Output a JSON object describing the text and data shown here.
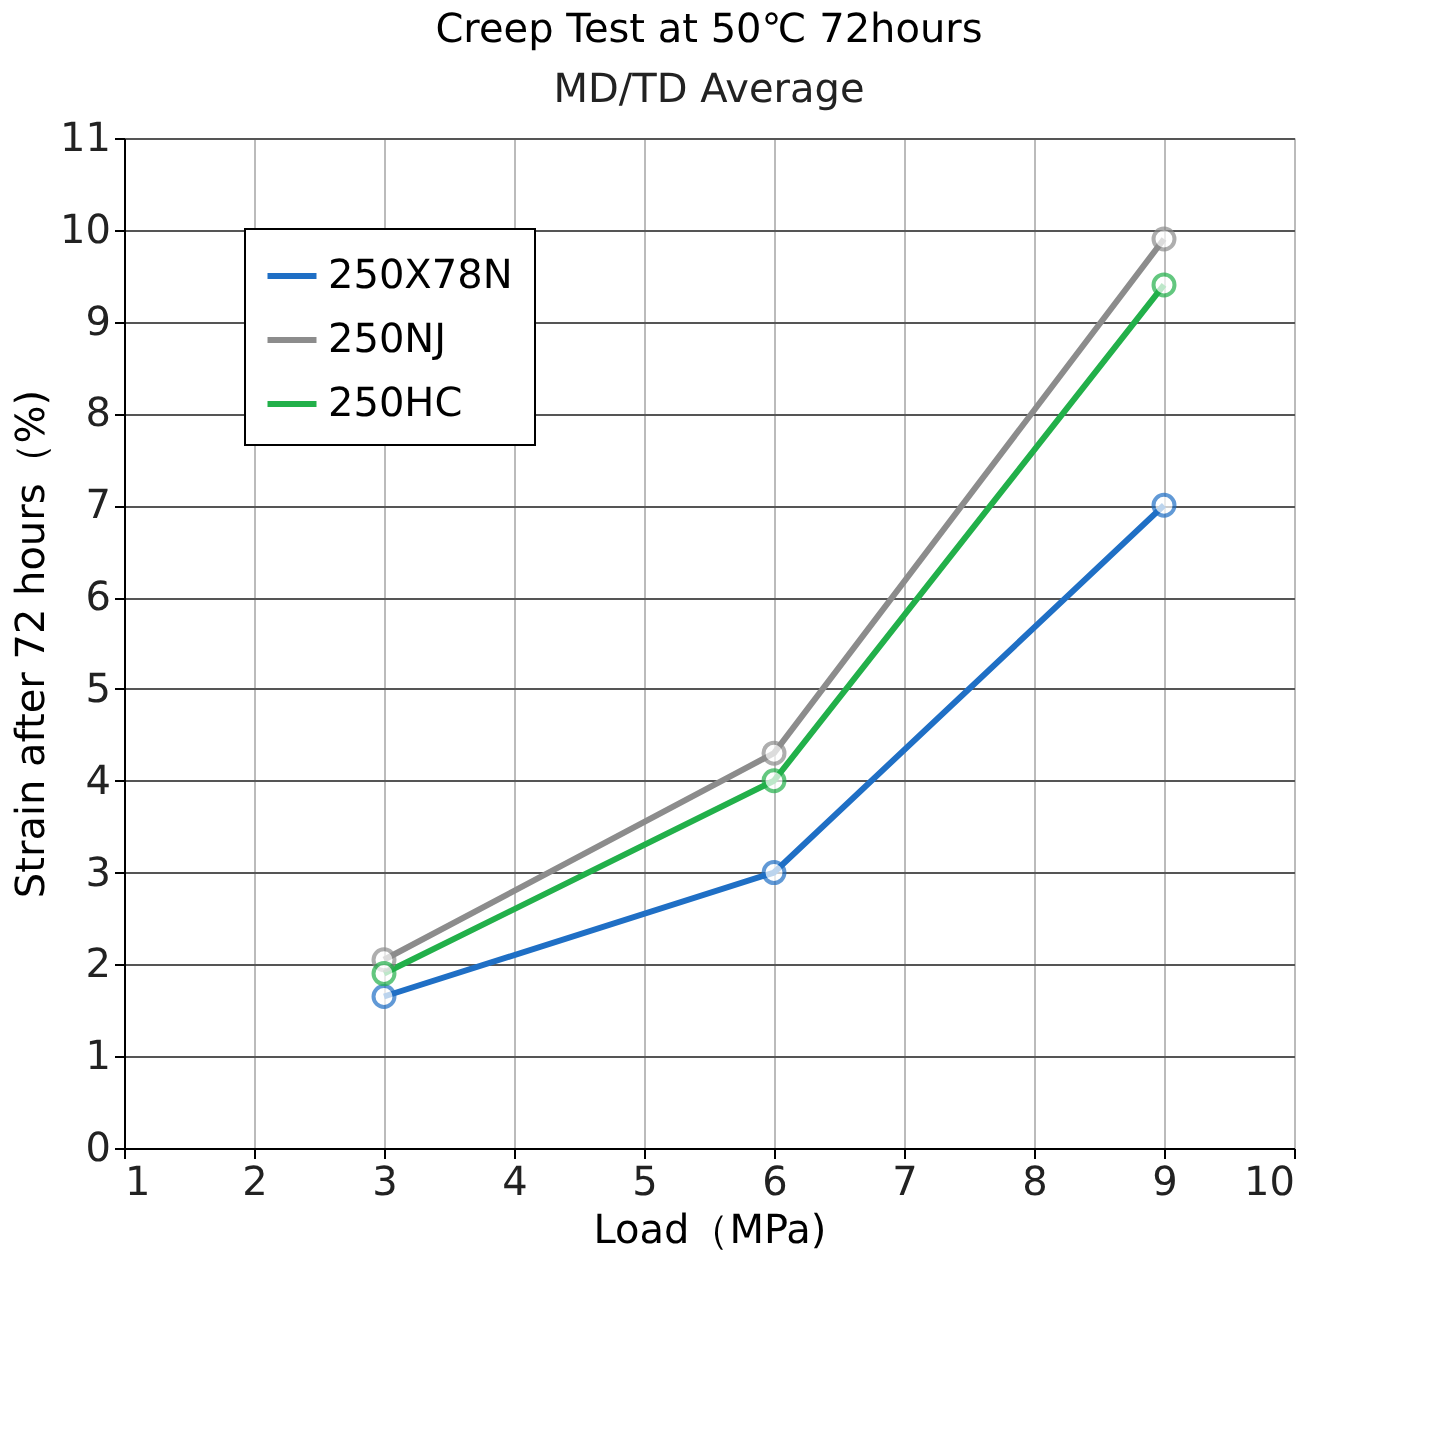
{
  "chart_data": {
    "type": "line",
    "title": "Creep Test at 50℃  72hours",
    "subtitle": "MD/TD Average",
    "xlabel": "Load（MPa)",
    "ylabel": "Strain after 72 hours（%)",
    "x": [
      3,
      6,
      9
    ],
    "series": [
      {
        "name": "250X78N",
        "color": "#1f6fc5",
        "values": [
          1.65,
          3.0,
          7.0
        ]
      },
      {
        "name": "250NJ",
        "color": "#8c8c8c",
        "values": [
          2.05,
          4.3,
          9.9
        ]
      },
      {
        "name": "250HC",
        "color": "#22b04a",
        "values": [
          1.9,
          4.0,
          9.4
        ]
      }
    ],
    "xlim": [
      1,
      10
    ],
    "xticks": [
      1,
      2,
      3,
      4,
      5,
      6,
      7,
      8,
      9,
      10
    ],
    "ylim": [
      0,
      11
    ],
    "yticks": [
      0,
      1,
      2,
      3,
      4,
      5,
      6,
      7,
      8,
      9,
      10,
      11
    ],
    "grid": true,
    "legend": "top left",
    "marker": "circle",
    "line_style": "solid"
  }
}
